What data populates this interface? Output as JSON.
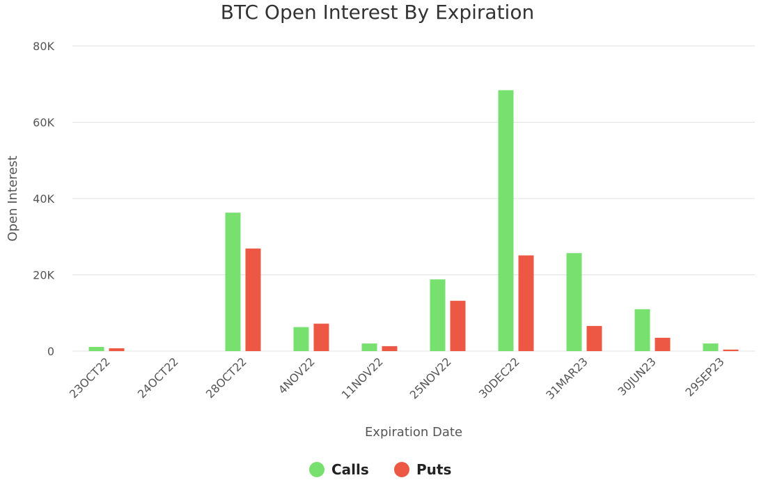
{
  "chart_data": {
    "type": "bar",
    "title": "BTC Open Interest By Expiration",
    "xlabel": "Expiration Date",
    "ylabel": "Open Interest",
    "ylim": [
      0,
      80000
    ],
    "yticks": [
      0,
      20000,
      40000,
      60000,
      80000
    ],
    "ytick_labels": [
      "0",
      "20K",
      "40K",
      "60K",
      "80K"
    ],
    "grid": true,
    "legend_position": "bottom",
    "categories": [
      "23OCT22",
      "24OCT22",
      "28OCT22",
      "4NOV22",
      "11NOV22",
      "25NOV22",
      "30DEC22",
      "31MAR23",
      "30JUN23",
      "29SEP23"
    ],
    "series": [
      {
        "name": "Calls",
        "color": "#77e06f",
        "values": [
          1100,
          0,
          36300,
          6300,
          2000,
          18800,
          68400,
          25700,
          11000,
          2000
        ]
      },
      {
        "name": "Puts",
        "color": "#ec5843",
        "values": [
          750,
          0,
          26900,
          7200,
          1300,
          13200,
          25100,
          6600,
          3500,
          400
        ]
      }
    ]
  }
}
